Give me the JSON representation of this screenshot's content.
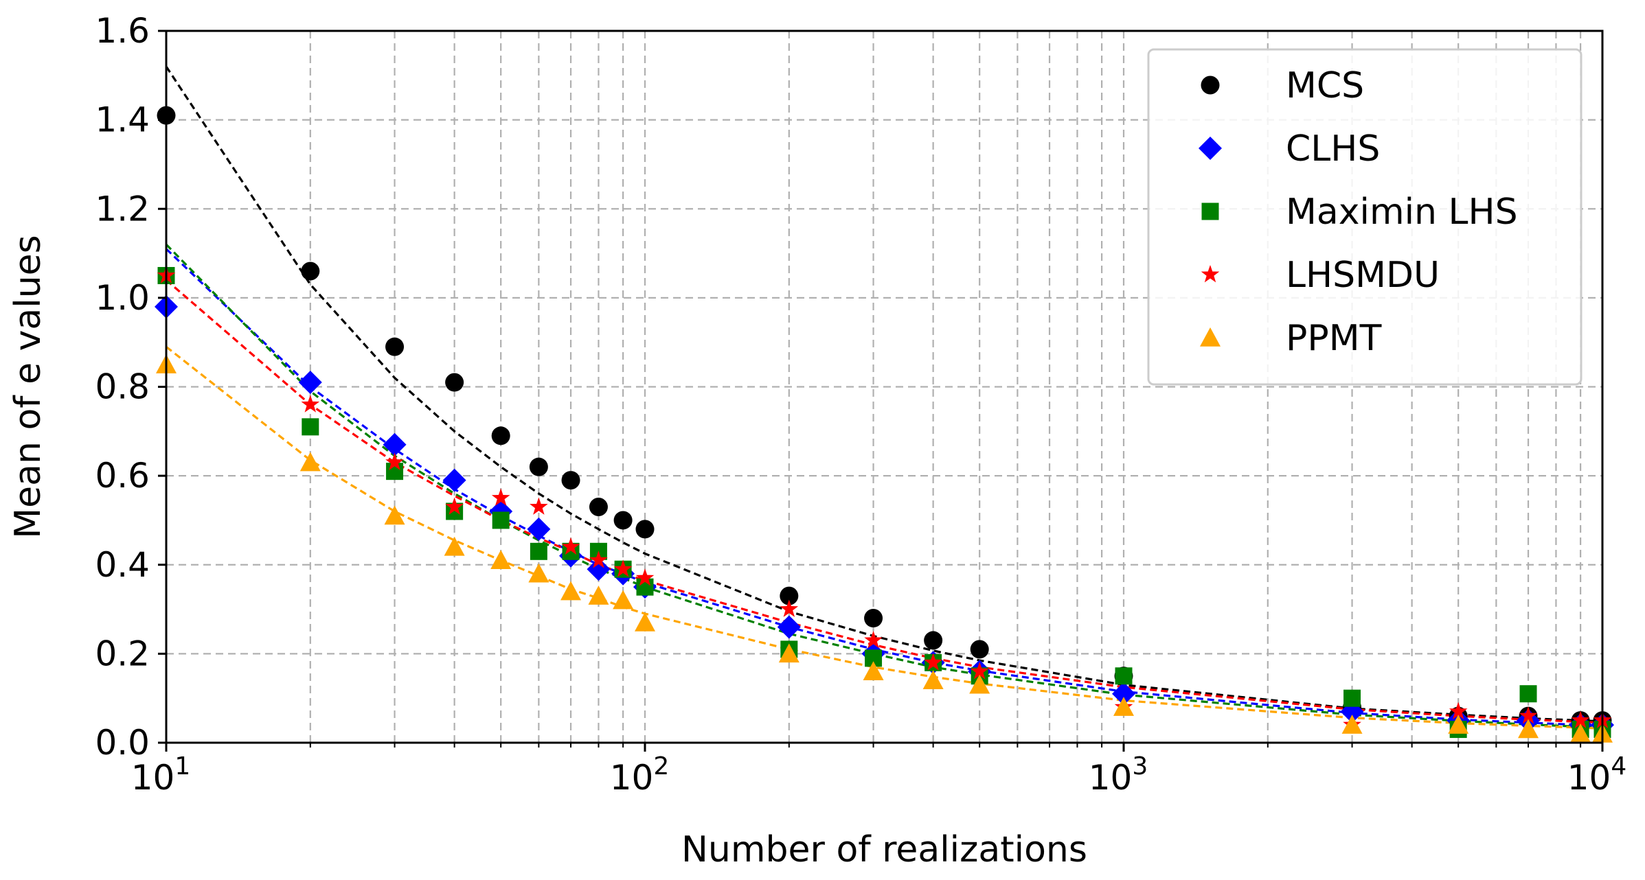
{
  "chart_data": {
    "type": "scatter",
    "title": "",
    "xlabel": "Number of realizations",
    "ylabel": "Mean of e values",
    "xscale": "log",
    "xlim": [
      10,
      10000
    ],
    "ylim": [
      0,
      1.6
    ],
    "grid": true,
    "legend_position": "top-right",
    "y_ticks": [
      "0.0",
      "0.2",
      "0.4",
      "0.6",
      "0.8",
      "1.0",
      "1.2",
      "1.4",
      "1.6"
    ],
    "x_ticks": [
      {
        "value": 10,
        "base": "10",
        "exp": "1"
      },
      {
        "value": 100,
        "base": "10",
        "exp": "2"
      },
      {
        "value": 1000,
        "base": "10",
        "exp": "3"
      },
      {
        "value": 10000,
        "base": "10",
        "exp": "4"
      }
    ],
    "x": [
      10,
      20,
      30,
      40,
      50,
      60,
      70,
      80,
      90,
      100,
      200,
      300,
      400,
      500,
      1000,
      3000,
      5000,
      7000,
      9000,
      10000
    ],
    "series": [
      {
        "name": "MCS",
        "color": "#000000",
        "marker": "circle",
        "values": [
          1.41,
          1.06,
          0.89,
          0.81,
          0.69,
          0.62,
          0.59,
          0.53,
          0.5,
          0.48,
          0.33,
          0.28,
          0.23,
          0.21,
          0.15,
          0.08,
          0.06,
          0.06,
          0.05,
          0.05
        ],
        "fit": [
          1.52,
          1.03,
          0.82,
          0.7,
          0.62,
          0.56,
          0.515,
          0.48,
          0.45,
          0.425,
          0.295,
          0.24,
          0.207,
          0.185,
          0.13,
          0.077,
          0.063,
          0.055,
          0.05,
          0.048
        ]
      },
      {
        "name": "CLHS",
        "color": "#0000ff",
        "marker": "diamond",
        "values": [
          0.98,
          0.81,
          0.67,
          0.59,
          0.52,
          0.48,
          0.42,
          0.39,
          0.38,
          0.35,
          0.26,
          0.2,
          0.18,
          0.16,
          0.11,
          0.07,
          0.05,
          0.05,
          0.04,
          0.04
        ],
        "fit": [
          1.11,
          0.8,
          0.66,
          0.57,
          0.51,
          0.465,
          0.43,
          0.4,
          0.38,
          0.36,
          0.26,
          0.21,
          0.18,
          0.162,
          0.115,
          0.067,
          0.052,
          0.045,
          0.04,
          0.038
        ]
      },
      {
        "name": "Maximin LHS",
        "color": "#008000",
        "marker": "square",
        "values": [
          1.05,
          0.71,
          0.61,
          0.52,
          0.5,
          0.43,
          0.43,
          0.43,
          0.39,
          0.35,
          0.21,
          0.19,
          0.18,
          0.15,
          0.15,
          0.1,
          0.03,
          0.11,
          0.03,
          0.03
        ],
        "fit": [
          1.12,
          0.79,
          0.645,
          0.56,
          0.5,
          0.455,
          0.42,
          0.39,
          0.37,
          0.35,
          0.245,
          0.2,
          0.17,
          0.153,
          0.108,
          0.063,
          0.049,
          0.041,
          0.036,
          0.034
        ]
      },
      {
        "name": "LHSMDU",
        "color": "#ff0000",
        "marker": "star",
        "values": [
          1.05,
          0.76,
          0.63,
          0.53,
          0.55,
          0.53,
          0.44,
          0.41,
          0.39,
          0.37,
          0.3,
          0.23,
          0.18,
          0.16,
          0.08,
          0.04,
          0.07,
          0.06,
          0.05,
          0.05
        ],
        "fit": [
          1.04,
          0.76,
          0.63,
          0.555,
          0.5,
          0.46,
          0.43,
          0.4,
          0.38,
          0.365,
          0.27,
          0.22,
          0.19,
          0.17,
          0.125,
          0.075,
          0.06,
          0.052,
          0.047,
          0.045
        ]
      },
      {
        "name": "PPMT",
        "color": "#ffa500",
        "marker": "triangle",
        "values": [
          0.85,
          0.63,
          0.51,
          0.44,
          0.41,
          0.38,
          0.34,
          0.33,
          0.32,
          0.27,
          0.2,
          0.16,
          0.14,
          0.13,
          0.08,
          0.04,
          0.04,
          0.03,
          0.02,
          0.02
        ],
        "fit": [
          0.89,
          0.635,
          0.52,
          0.455,
          0.41,
          0.375,
          0.345,
          0.325,
          0.305,
          0.29,
          0.21,
          0.17,
          0.148,
          0.133,
          0.095,
          0.056,
          0.044,
          0.038,
          0.034,
          0.032
        ]
      }
    ]
  }
}
